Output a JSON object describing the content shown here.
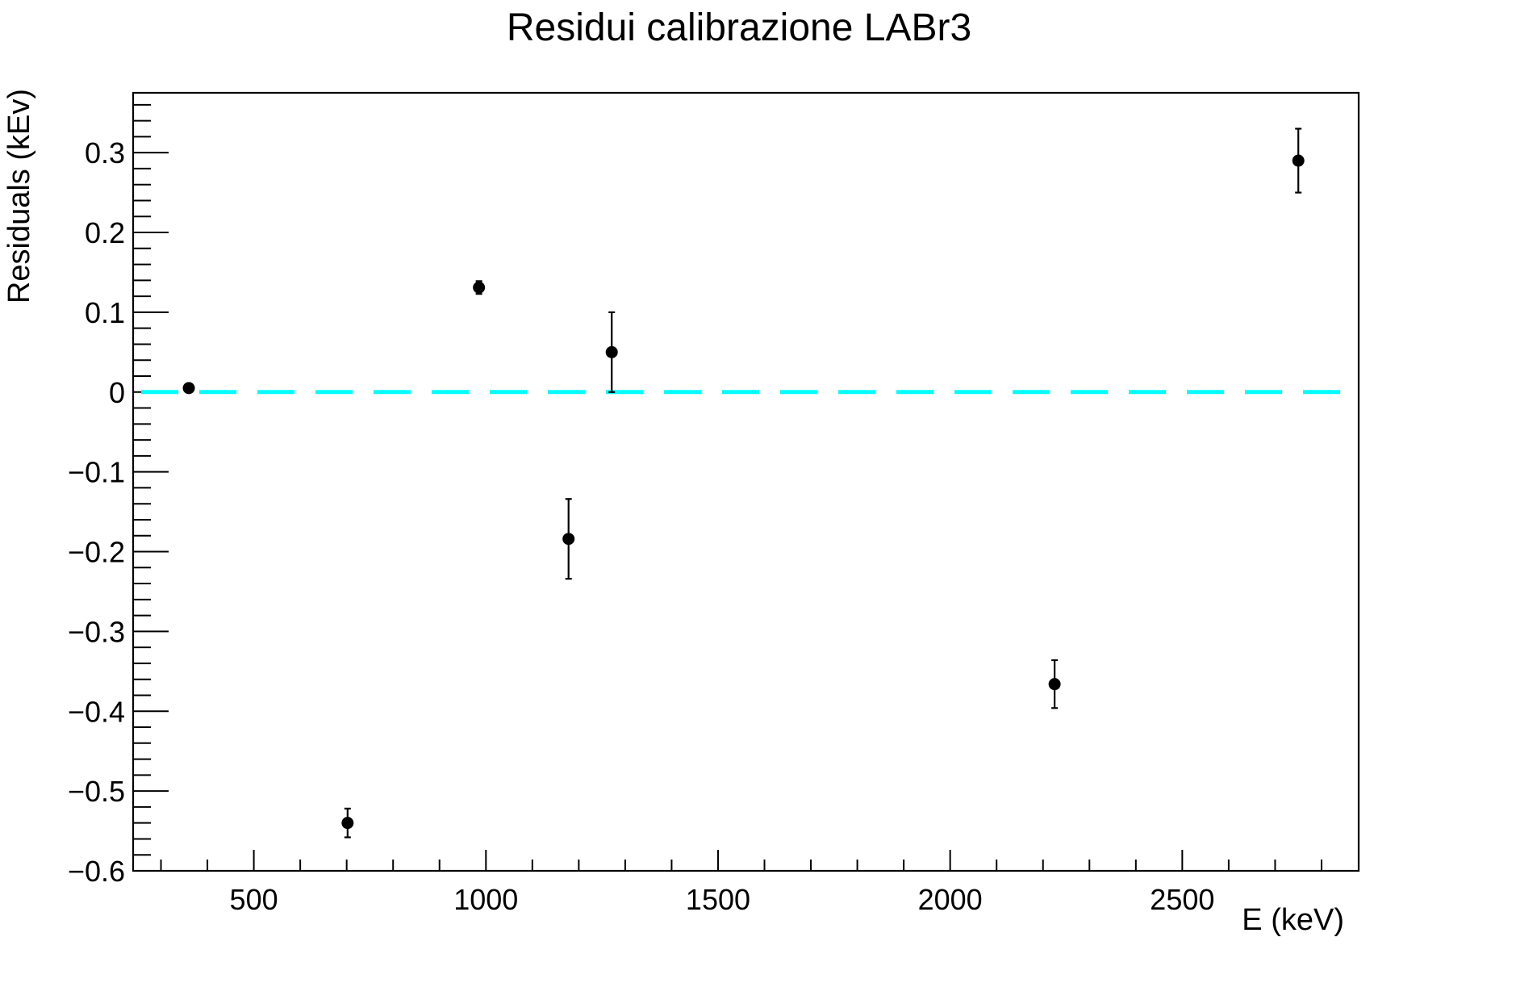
{
  "chart_data": {
    "type": "scatter",
    "title": "Residui calibrazione LABr3",
    "xlabel": "E (keV)",
    "ylabel": "Residuals (kEv)",
    "xlim": [
      240,
      2880
    ],
    "ylim": [
      -0.6,
      0.375
    ],
    "x_ticks": [
      500,
      1000,
      1500,
      2000,
      2500
    ],
    "x_tick_labels": [
      "500",
      "1000",
      "1500",
      "2000",
      "2500"
    ],
    "y_ticks": [
      -0.6,
      -0.5,
      -0.4,
      -0.3,
      -0.2,
      -0.1,
      0,
      0.1,
      0.2,
      0.3
    ],
    "y_tick_labels": [
      "−0.6",
      "−0.5",
      "−0.4",
      "−0.3",
      "−0.2",
      "−0.1",
      "0",
      "0.1",
      "0.2",
      "0.3"
    ],
    "grid": false,
    "points": [
      {
        "x": 360,
        "y": 0.005,
        "err": 0.003
      },
      {
        "x": 702,
        "y": -0.54,
        "err": 0.018
      },
      {
        "x": 985,
        "y": 0.131,
        "err": 0.008
      },
      {
        "x": 1178,
        "y": -0.184,
        "err": 0.05
      },
      {
        "x": 1271,
        "y": 0.05,
        "err": 0.05
      },
      {
        "x": 2225,
        "y": -0.366,
        "err": 0.03
      },
      {
        "x": 2750,
        "y": 0.29,
        "err": 0.04
      }
    ],
    "reference_line": {
      "y": 0,
      "style": "dashed",
      "color": "#00ffff"
    },
    "marker_color": "#000000"
  }
}
